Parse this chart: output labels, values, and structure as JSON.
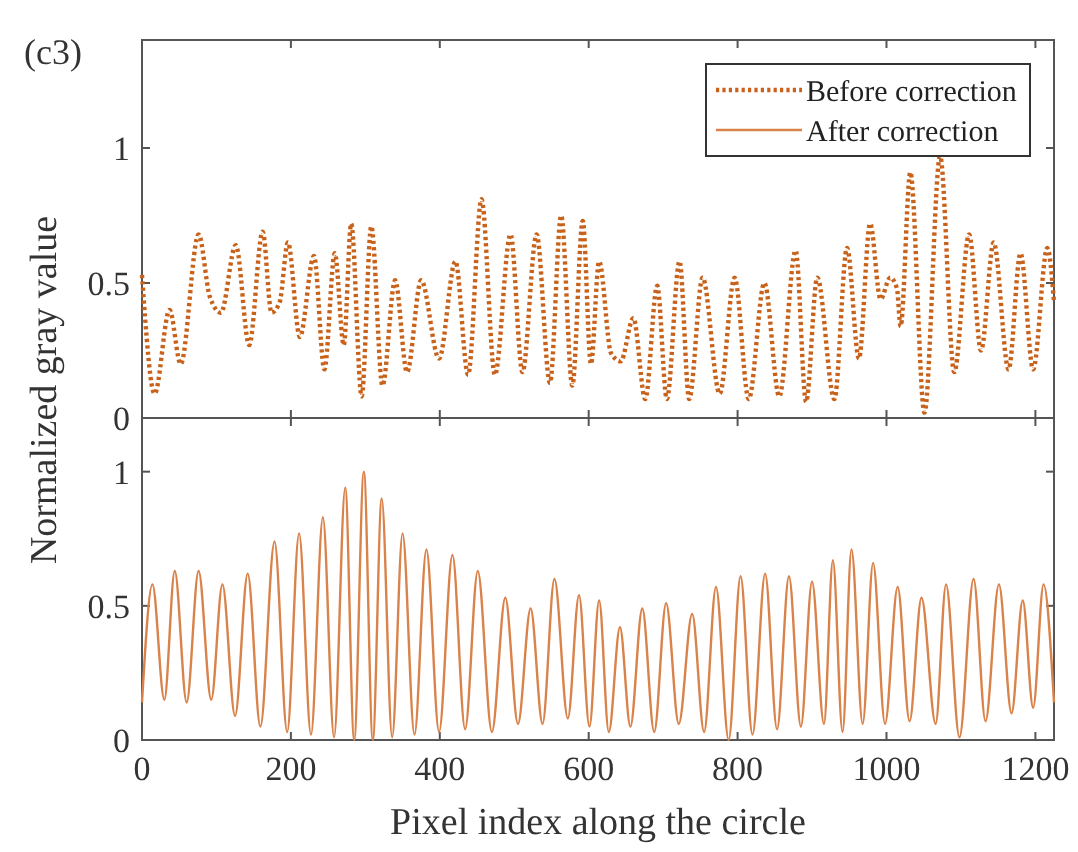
{
  "chart_data": [
    {
      "type": "line",
      "ylabel": "Normalized gray value",
      "annotations": [
        "(c3)"
      ],
      "xlim": [
        0,
        1225
      ],
      "xticks": [
        0,
        200,
        400,
        600,
        800,
        1000,
        1200
      ],
      "ylim": [
        0,
        1.4
      ],
      "yticks": [
        0,
        0.5,
        1
      ],
      "tick_labels": "y",
      "legend": "top right",
      "grid": false,
      "marker": "none",
      "series": [
        {
          "name": "Before correction",
          "color": "#c8621a",
          "line_style": "dotted",
          "x": [
            0,
            17,
            37,
            52,
            76,
            91,
            106,
            126,
            144,
            162,
            174,
            185,
            196,
            212,
            231,
            245,
            259,
            271,
            281,
            295,
            308,
            323,
            340,
            356,
            375,
            399,
            421,
            438,
            456,
            474,
            495,
            511,
            530,
            548,
            563,
            578,
            592,
            603,
            614,
            630,
            643,
            660,
            676,
            692,
            705,
            722,
            735,
            753,
            776,
            796,
            815,
            836,
            856,
            878,
            892,
            907,
            930,
            947,
            963,
            978,
            992,
            1005,
            1014,
            1019,
            1032,
            1051,
            1072,
            1091,
            1111,
            1127,
            1144,
            1164,
            1180,
            1197,
            1216,
            1225
          ],
          "values": [
            0.53,
            0.09,
            0.4,
            0.2,
            0.68,
            0.45,
            0.39,
            0.64,
            0.27,
            0.69,
            0.39,
            0.43,
            0.65,
            0.3,
            0.6,
            0.18,
            0.61,
            0.27,
            0.72,
            0.08,
            0.71,
            0.12,
            0.51,
            0.17,
            0.51,
            0.22,
            0.58,
            0.16,
            0.81,
            0.16,
            0.68,
            0.17,
            0.68,
            0.13,
            0.75,
            0.12,
            0.73,
            0.2,
            0.58,
            0.24,
            0.21,
            0.37,
            0.07,
            0.49,
            0.07,
            0.58,
            0.07,
            0.52,
            0.09,
            0.52,
            0.07,
            0.5,
            0.08,
            0.62,
            0.06,
            0.52,
            0.07,
            0.63,
            0.22,
            0.72,
            0.44,
            0.52,
            0.48,
            0.34,
            0.91,
            0.02,
            0.97,
            0.17,
            0.68,
            0.25,
            0.65,
            0.18,
            0.61,
            0.18,
            0.63,
            0.43
          ]
        }
      ]
    },
    {
      "type": "line",
      "xlabel": "Pixel index along the circle",
      "xlim": [
        0,
        1225
      ],
      "xticks": [
        0,
        200,
        400,
        600,
        800,
        1000,
        1200
      ],
      "ylim": [
        0,
        1.2
      ],
      "yticks": [
        0,
        0.5,
        1
      ],
      "grid": false,
      "marker": "none",
      "series": [
        {
          "name": "After correction",
          "color": "#d9824a",
          "line_style": "solid",
          "x": [
            0,
            14,
            30,
            44,
            60,
            76,
            93,
            108,
            125,
            142,
            159,
            178,
            195,
            211,
            227,
            243,
            258,
            273,
            285,
            298,
            310,
            322,
            336,
            350,
            366,
            382,
            399,
            417,
            434,
            451,
            470,
            488,
            505,
            522,
            538,
            554,
            572,
            587,
            601,
            614,
            627,
            642,
            656,
            672,
            688,
            704,
            721,
            739,
            755,
            771,
            788,
            804,
            820,
            837,
            853,
            869,
            885,
            900,
            916,
            928,
            941,
            953,
            968,
            982,
            998,
            1015,
            1031,
            1047,
            1066,
            1080,
            1098,
            1117,
            1133,
            1151,
            1168,
            1183,
            1197,
            1211,
            1225
          ],
          "values": [
            0.14,
            0.58,
            0.15,
            0.63,
            0.14,
            0.63,
            0.15,
            0.58,
            0.09,
            0.62,
            0.05,
            0.74,
            0.03,
            0.77,
            0.02,
            0.83,
            0.01,
            0.94,
            0,
            1.0,
            0,
            0.9,
            0.01,
            0.77,
            0.02,
            0.71,
            0.03,
            0.69,
            0.04,
            0.63,
            0.03,
            0.53,
            0.06,
            0.49,
            0.06,
            0.6,
            0.08,
            0.54,
            0.05,
            0.52,
            0.03,
            0.42,
            0.05,
            0.49,
            0.03,
            0.51,
            0.06,
            0.47,
            0.03,
            0.57,
            0,
            0.61,
            0.02,
            0.62,
            0.04,
            0.61,
            0.05,
            0.59,
            0.06,
            0.67,
            0.03,
            0.71,
            0.06,
            0.66,
            0.06,
            0.57,
            0.07,
            0.53,
            0.06,
            0.58,
            0.01,
            0.6,
            0.07,
            0.58,
            0.1,
            0.52,
            0.12,
            0.58,
            0.14
          ]
        }
      ]
    }
  ]
}
